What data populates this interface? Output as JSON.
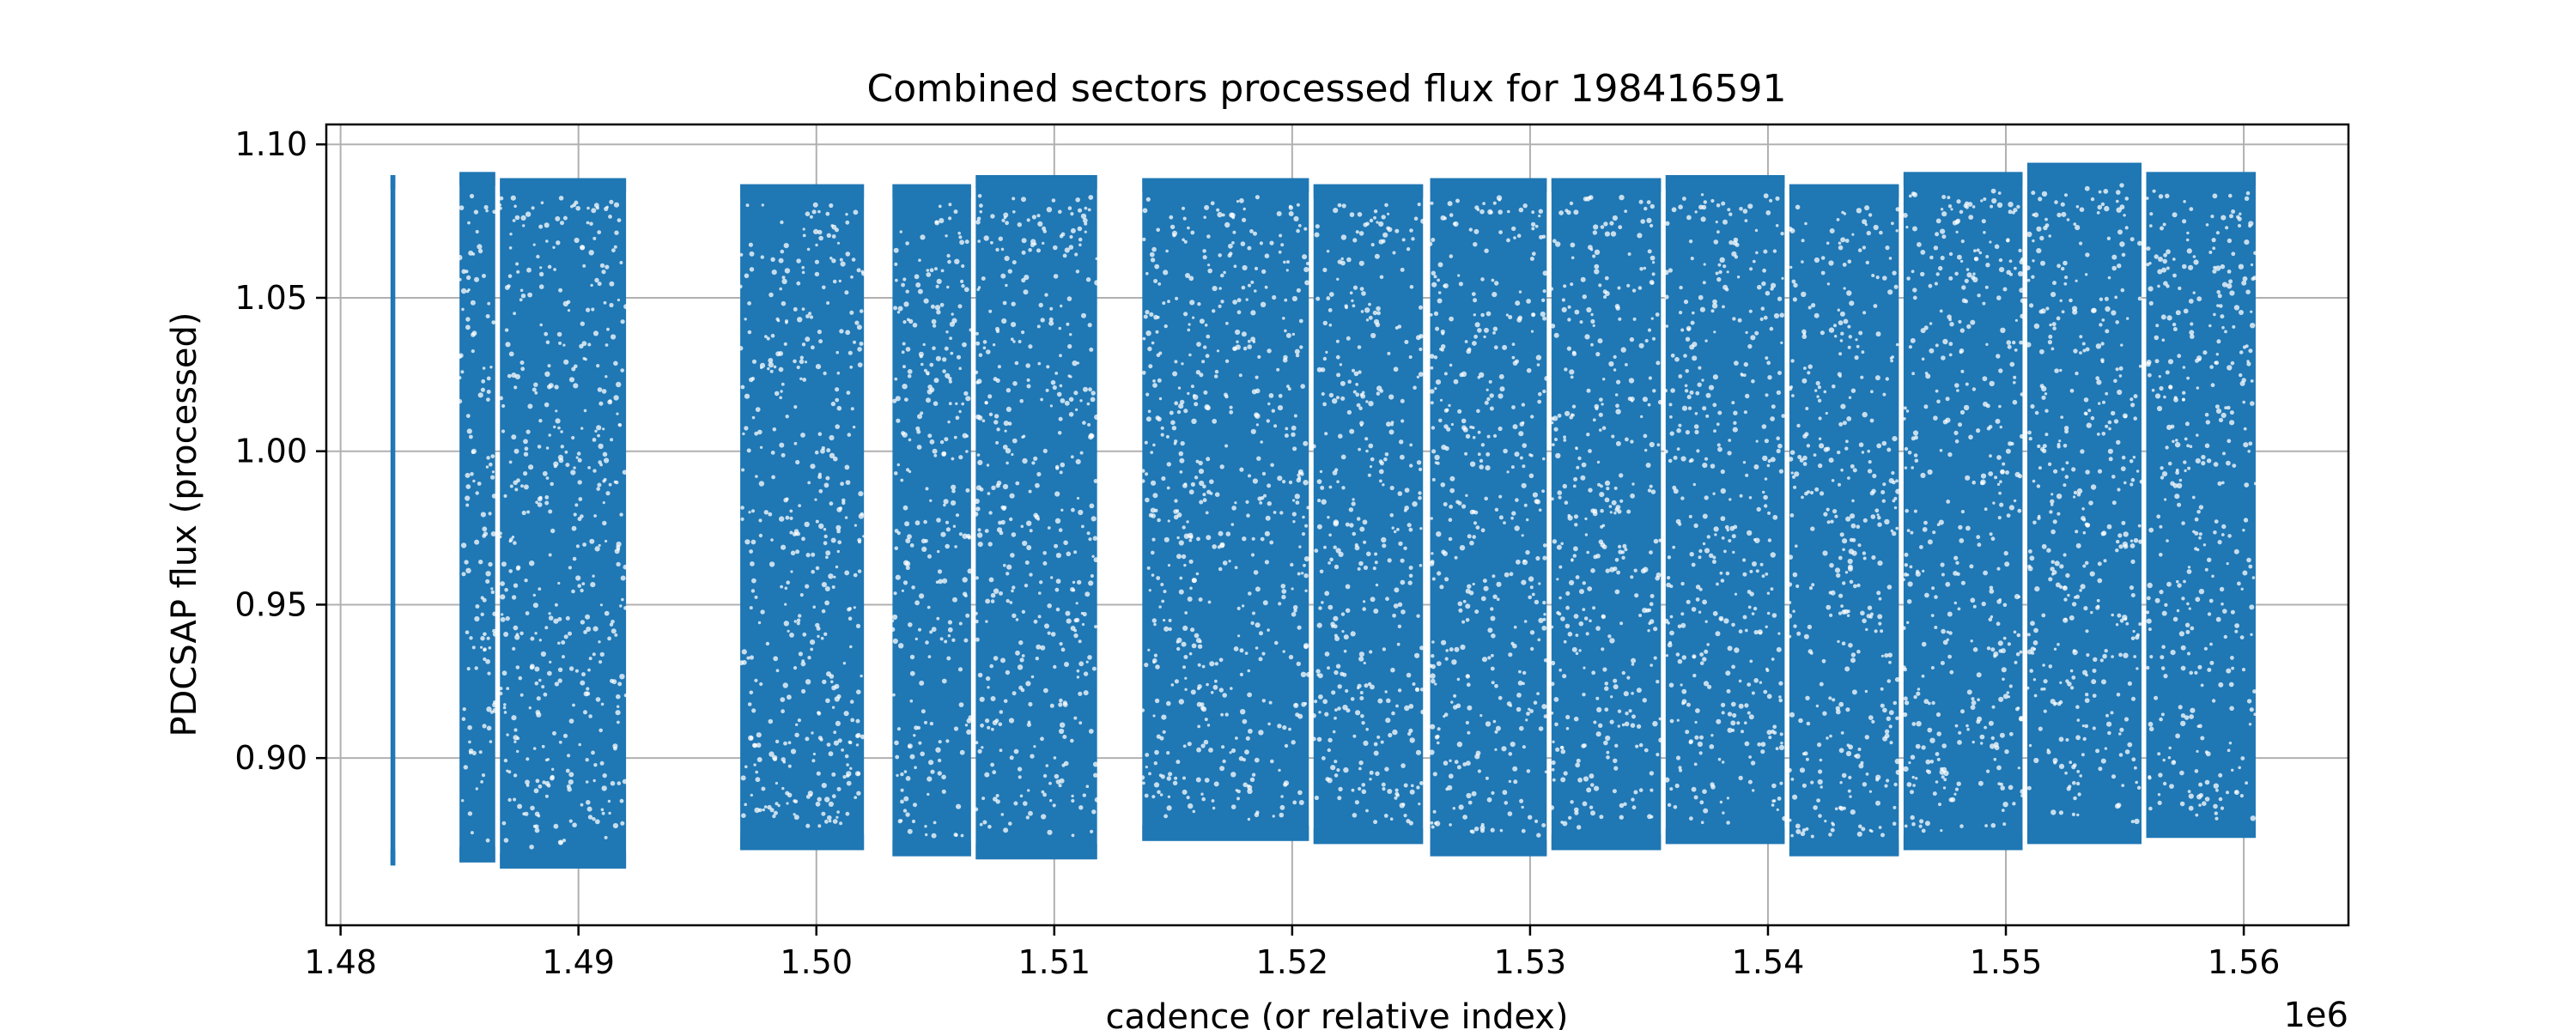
{
  "chart_data": {
    "type": "scatter",
    "title": "Combined sectors processed flux for 198416591",
    "xlabel": "cadence (or relative index)",
    "ylabel": "PDCSAP flux (processed)",
    "x_offset_label": "1e6",
    "xlim": [
      1.4794,
      1.5644
    ],
    "ylim": [
      0.8455,
      1.1065
    ],
    "xticks": [
      1.48,
      1.49,
      1.5,
      1.51,
      1.52,
      1.53,
      1.54,
      1.55,
      1.56
    ],
    "xtick_labels": [
      "1.48",
      "1.49",
      "1.50",
      "1.51",
      "1.52",
      "1.53",
      "1.54",
      "1.55",
      "1.56"
    ],
    "yticks": [
      0.9,
      0.95,
      1.0,
      1.05,
      1.1
    ],
    "ytick_labels": [
      "0.90",
      "0.95",
      "1.00",
      "1.05",
      "1.10"
    ],
    "grid": true,
    "marker_color": "#1f77b4",
    "series": [
      {
        "segments": [
          {
            "x_start": 1.4821,
            "x_end": 1.4823,
            "y_min": 0.865,
            "y_max": 1.09
          },
          {
            "x_start": 1.485,
            "x_end": 1.4865,
            "y_min": 0.866,
            "y_max": 1.091
          },
          {
            "x_start": 1.4867,
            "x_end": 1.492,
            "y_min": 0.864,
            "y_max": 1.089
          },
          {
            "x_start": 1.4968,
            "x_end": 1.502,
            "y_min": 0.87,
            "y_max": 1.087
          },
          {
            "x_start": 1.5032,
            "x_end": 1.5065,
            "y_min": 0.868,
            "y_max": 1.087
          },
          {
            "x_start": 1.5067,
            "x_end": 1.5118,
            "y_min": 0.867,
            "y_max": 1.09
          },
          {
            "x_start": 1.5137,
            "x_end": 1.5207,
            "y_min": 0.873,
            "y_max": 1.089
          },
          {
            "x_start": 1.5209,
            "x_end": 1.5255,
            "y_min": 0.872,
            "y_max": 1.087
          },
          {
            "x_start": 1.5258,
            "x_end": 1.5307,
            "y_min": 0.868,
            "y_max": 1.089
          },
          {
            "x_start": 1.5309,
            "x_end": 1.5355,
            "y_min": 0.87,
            "y_max": 1.089
          },
          {
            "x_start": 1.5357,
            "x_end": 1.5407,
            "y_min": 0.872,
            "y_max": 1.09
          },
          {
            "x_start": 1.5409,
            "x_end": 1.5455,
            "y_min": 0.868,
            "y_max": 1.087
          },
          {
            "x_start": 1.5457,
            "x_end": 1.5507,
            "y_min": 0.87,
            "y_max": 1.091
          },
          {
            "x_start": 1.5509,
            "x_end": 1.5557,
            "y_min": 0.872,
            "y_max": 1.094
          },
          {
            "x_start": 1.5559,
            "x_end": 1.5605,
            "y_min": 0.874,
            "y_max": 1.091
          }
        ]
      }
    ]
  }
}
